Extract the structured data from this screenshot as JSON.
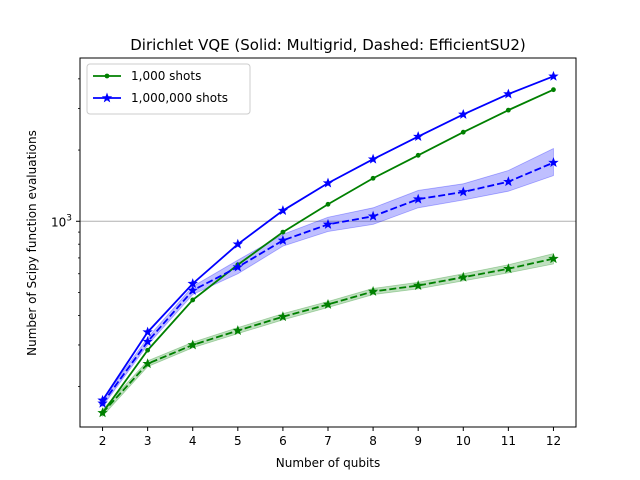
{
  "chart_data": {
    "type": "line",
    "title": "Dirichlet VQE (Solid: Multigrid, Dashed: EfficientSU2)",
    "xlabel": "Number of qubits",
    "ylabel": "Number of Scipy function evaluations",
    "x": [
      2,
      3,
      4,
      5,
      6,
      7,
      8,
      9,
      10,
      11,
      12
    ],
    "xticks": [
      "2",
      "3",
      "4",
      "5",
      "6",
      "7",
      "8",
      "9",
      "10",
      "11",
      "12"
    ],
    "yscale": "log",
    "ytick_values": [
      1000
    ],
    "ytick_label": "10",
    "ytick_label_exp": "3",
    "ylim": [
      135,
      4900
    ],
    "xlim": [
      1.5,
      12.5
    ],
    "grid": "horizontal line at 10^3",
    "legend_position": "top-left",
    "legend": [
      {
        "label": "1,000 shots",
        "color": "#008000",
        "marker": "dot"
      },
      {
        "label": "1,000,000 shots",
        "color": "#0000ff",
        "marker": "star"
      }
    ],
    "series": [
      {
        "name": "1,000 shots",
        "method": "Multigrid",
        "style": "solid",
        "marker": "dot",
        "color": "#008000",
        "values": [
          155,
          285,
          465,
          655,
          900,
          1180,
          1520,
          1900,
          2380,
          2950,
          3600
        ]
      },
      {
        "name": "1,000,000 shots",
        "method": "Multigrid",
        "style": "solid",
        "marker": "star",
        "color": "#0000ff",
        "values": [
          175,
          340,
          545,
          800,
          1110,
          1450,
          1830,
          2280,
          2830,
          3450,
          4100
        ]
      },
      {
        "name": "1,000 shots",
        "method": "EfficientSU2",
        "style": "dashed",
        "marker": "star",
        "color": "#008000",
        "values": [
          155,
          250,
          300,
          345,
          395,
          445,
          505,
          535,
          580,
          630,
          695
        ],
        "band_low": [
          150,
          243,
          292,
          335,
          383,
          432,
          490,
          518,
          560,
          605,
          660
        ],
        "band_high": [
          160,
          257,
          308,
          355,
          407,
          458,
          520,
          552,
          600,
          655,
          730
        ]
      },
      {
        "name": "1,000,000 shots",
        "method": "EfficientSU2",
        "style": "dashed",
        "marker": "star",
        "color": "#0000ff",
        "values": [
          170,
          310,
          510,
          640,
          830,
          970,
          1050,
          1240,
          1330,
          1470,
          1770
        ],
        "band_low": [
          165,
          300,
          490,
          600,
          785,
          905,
          970,
          1140,
          1230,
          1340,
          1560
        ],
        "band_high": [
          175,
          322,
          530,
          685,
          880,
          1040,
          1140,
          1350,
          1440,
          1640,
          2030
        ]
      }
    ]
  }
}
